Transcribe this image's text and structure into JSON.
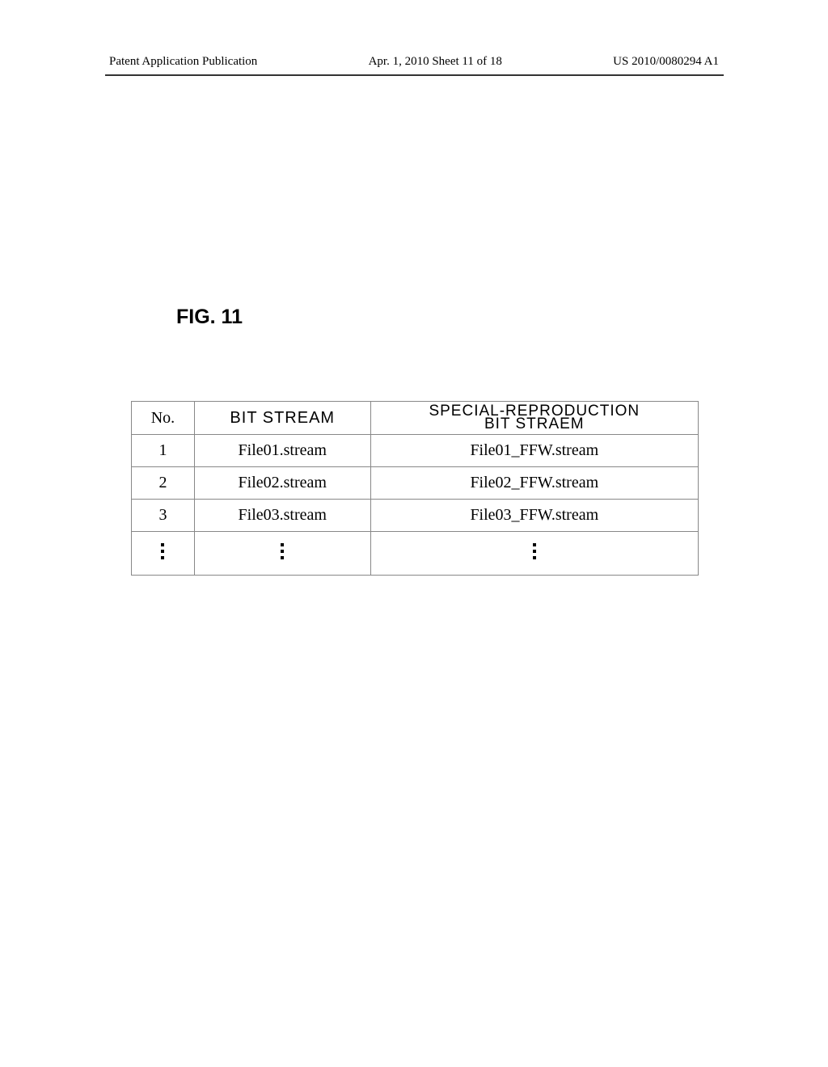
{
  "header": {
    "left": "Patent Application Publication",
    "center": "Apr. 1, 2010  Sheet 11 of 18",
    "right": "US 2010/0080294 A1"
  },
  "figure_label": "FIG. 11",
  "table": {
    "columns": {
      "c1": "No.",
      "c2": "BIT STREAM",
      "c3_line1": "SPECIAL-REPRODUCTION",
      "c3_line2": "BIT STRAEM"
    },
    "rows": [
      {
        "no": "1",
        "stream": "File01.stream",
        "special": "File01_FFW.stream"
      },
      {
        "no": "2",
        "stream": "File02.stream",
        "special": "File02_FFW.stream"
      },
      {
        "no": "3",
        "stream": "File03.stream",
        "special": "File03_FFW.stream"
      }
    ]
  },
  "colors": {
    "background": "#ffffff",
    "text": "#000000",
    "border": "#888888",
    "divider": "#333333"
  }
}
